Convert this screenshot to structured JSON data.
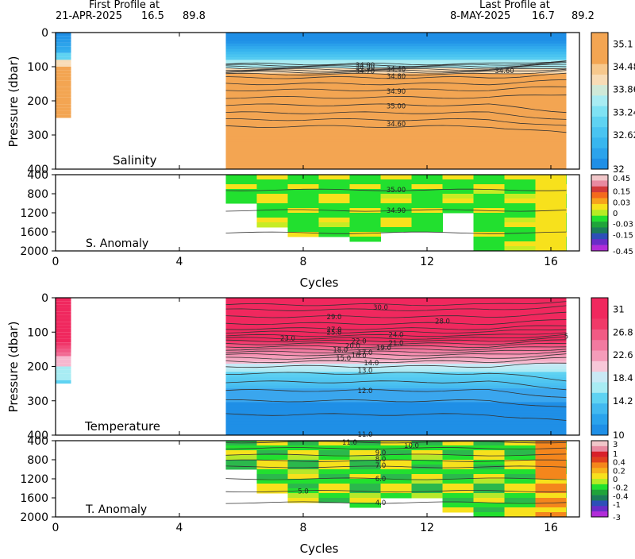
{
  "header": {
    "first_title": "First Profile at",
    "first_date": "21-APR-2025",
    "first_lat": "16.5",
    "first_lon": "89.8",
    "last_title": "Last Profile at",
    "last_date": "8-MAY-2025",
    "last_lat": "16.7",
    "last_lon": "89.2"
  },
  "colors": {
    "blue_deep": "#1f8fe6",
    "blue_mid": "#38b6ef",
    "cyan": "#5fd3f2",
    "cyan_light": "#a8ecf3",
    "beige": "#f8dcb6",
    "orange": "#f3a552",
    "magenta_deep": "#f0285e",
    "pink": "#f27aa0",
    "green": "#22e02f",
    "yellow": "#f7e11c",
    "orange_anom": "#f4861c"
  },
  "chart_data": [
    {
      "type": "heatmap",
      "title": "Salinity",
      "xlabel": "",
      "ylabel": "Pressure (dbar)",
      "xlim": [
        0,
        17
      ],
      "ylim": [
        400,
        0
      ],
      "x_ticks": [],
      "y_ticks": [
        "0",
        "100",
        "200",
        "300",
        "400"
      ],
      "colorbar": [
        "35.1",
        "34.48",
        "33.86",
        "33.24",
        "32.62",
        "32"
      ],
      "contour_labels": [
        "34.00",
        "34.30",
        "34.40",
        "34.70",
        "34.60",
        "34.80",
        "34.90",
        "35.00",
        "34.60"
      ],
      "profiles": {
        "first_cycle": 0,
        "first_depth": 250,
        "cycles_range": [
          5.5,
          16.5
        ],
        "depth_max": 400
      }
    },
    {
      "type": "heatmap",
      "title": "S. Anomaly",
      "xlabel": "Cycles",
      "ylabel": "",
      "xlim": [
        0,
        17
      ],
      "ylim": [
        2000,
        400
      ],
      "x_ticks": [
        "0",
        "4",
        "8",
        "12",
        "16"
      ],
      "y_ticks": [
        "400",
        "800",
        "1200",
        "1600",
        "2000"
      ],
      "colorbar": [
        "0.45",
        "0.15",
        "0.03",
        "0",
        "-0.03",
        "-0.15",
        "-0.45"
      ],
      "contour_labels": [
        "35.00",
        "34.90"
      ]
    },
    {
      "type": "heatmap",
      "title": "Temperature",
      "xlabel": "",
      "ylabel": "Pressure (dbar)",
      "xlim": [
        0,
        17
      ],
      "ylim": [
        400,
        0
      ],
      "x_ticks": [],
      "y_ticks": [
        "0",
        "100",
        "200",
        "300",
        "400"
      ],
      "colorbar": [
        "31",
        "26.8",
        "22.6",
        "18.4",
        "14.2",
        "10"
      ],
      "contour_labels": [
        "30.0",
        "29.0",
        "28.0",
        "27.0",
        "25.0",
        "24.0",
        "23.0",
        "22.0",
        "21.0",
        "20.0",
        "19.0",
        "18.0",
        "17.0",
        "16.0",
        "15.0",
        "14.0",
        "13.0",
        "12.0",
        "11.0",
        "5"
      ]
    },
    {
      "type": "heatmap",
      "title": "T. Anomaly",
      "xlabel": "Cycles",
      "ylabel": "",
      "xlim": [
        0,
        17
      ],
      "ylim": [
        2000,
        400
      ],
      "x_ticks": [
        "0",
        "4",
        "8",
        "12",
        "16"
      ],
      "y_ticks": [
        "400",
        "800",
        "1200",
        "1600",
        "2000"
      ],
      "colorbar": [
        "3",
        "1",
        "0.4",
        "0.2",
        "0",
        "-0.2",
        "-0.4",
        "-1",
        "-3"
      ],
      "contour_labels": [
        "11.0",
        "10.0",
        "9.0",
        "8.0",
        "7.0",
        "6.0",
        "5.0",
        "4.0"
      ]
    }
  ]
}
